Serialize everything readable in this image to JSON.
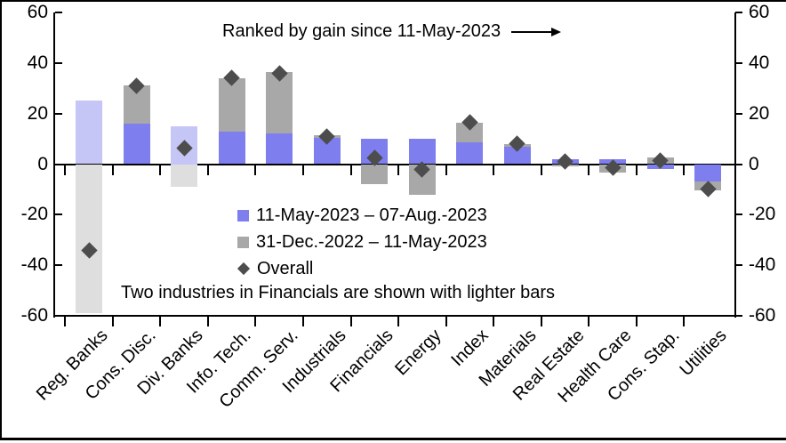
{
  "annotation": {
    "text": "Ranked by gain since 11-May-2023",
    "arrow_icon": "right-arrow"
  },
  "note": "Two industries in Financials are shown with lighter bars",
  "legend": {
    "items": [
      {
        "label": "11-May-2023 – 07-Aug.-2023",
        "marker": "blue-square"
      },
      {
        "label": "31-Dec.-2022 – 11-May-2023",
        "marker": "gray-square"
      },
      {
        "label": "Overall",
        "marker": "dark-diamond"
      }
    ]
  },
  "colors": {
    "series1_blue": "#7e7eef",
    "series1_blue_light": "#c6c6f6",
    "series2_gray": "#a8a8a8",
    "series2_gray_light": "#dedede",
    "overall_diamond": "#4d4d4d",
    "axis": "#000000",
    "background": "#ffffff"
  },
  "chart_data": {
    "type": "bar",
    "stacked": true,
    "title": "",
    "xlabel": "",
    "ylabel": "",
    "categories": [
      "Reg. Banks",
      "Cons. Disc.",
      "Div. Banks",
      "Info. Tech.",
      "Comm. Serv.",
      "Industrials",
      "Financials",
      "Energy",
      "Index",
      "Materials",
      "Real Estate",
      "Health Care",
      "Cons. Stap.",
      "Utilities"
    ],
    "series": [
      {
        "name": "11-May-2023 – 07-Aug.-2023",
        "type": "bar",
        "values": [
          25,
          16,
          15,
          13,
          12,
          10.5,
          10,
          10,
          8.5,
          7,
          2,
          2,
          -2,
          -7
        ]
      },
      {
        "name": "31-Dec.-2022 – 11-May-2023",
        "type": "bar",
        "values": [
          -59,
          15,
          -9,
          21,
          24.5,
          1,
          -8,
          -12,
          8,
          1,
          -1,
          -3.5,
          2.5,
          -3.5
        ]
      },
      {
        "name": "Overall",
        "type": "scatter",
        "marker": "diamond",
        "values": [
          -34,
          31,
          6.5,
          34,
          36,
          11,
          2.5,
          -2,
          16.5,
          8,
          1,
          -1.5,
          1.5,
          -10
        ]
      }
    ],
    "lighter_bar_categories": [
      "Reg. Banks",
      "Div. Banks"
    ],
    "ylim": [
      -60,
      60
    ],
    "yticks": [
      60,
      40,
      20,
      0,
      -20,
      -40,
      -60
    ],
    "y_axis_sides": [
      "left",
      "right"
    ],
    "grid": false,
    "legend_position": "inside-bottom-center"
  }
}
